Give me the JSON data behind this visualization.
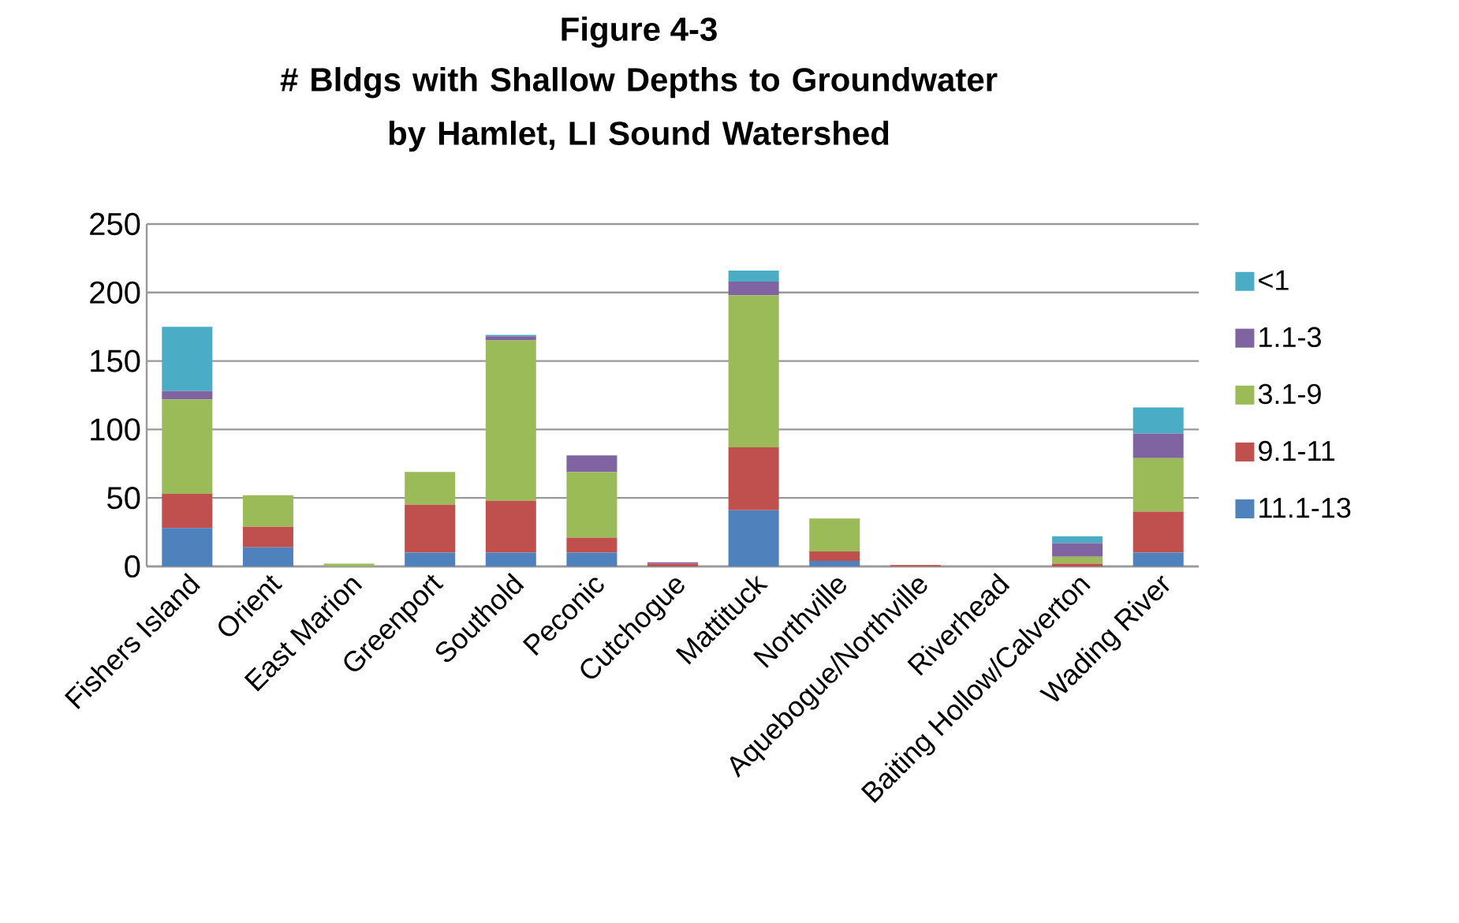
{
  "chart_data": {
    "type": "bar",
    "stacked": true,
    "title": "Figure 4-3",
    "subtitle": "# Bldgs with Shallow Depths to Groundwater by Hamlet, LI Sound Watershed",
    "categories": [
      "Fishers Island",
      "Orient",
      "East Marion",
      "Greenport",
      "Southold",
      "Peconic",
      "Cutchogue",
      "Mattituck",
      "Northville",
      "Aquebogue/Northville",
      "Riverhead",
      "Baiting Hollow/Calverton",
      "Wading River"
    ],
    "series": [
      {
        "name": "11.1-13",
        "color": "#4f81bd",
        "values": [
          28,
          14,
          0,
          10,
          10,
          10,
          0,
          41,
          4,
          0,
          0,
          0,
          10
        ]
      },
      {
        "name": "9.1-11",
        "color": "#c0504d",
        "values": [
          25,
          15,
          0,
          35,
          38,
          11,
          2,
          46,
          7,
          1,
          0,
          2,
          30
        ]
      },
      {
        "name": "3.1-9",
        "color": "#9bbb59",
        "values": [
          69,
          23,
          2,
          24,
          117,
          48,
          0,
          111,
          24,
          0,
          0,
          5,
          39
        ]
      },
      {
        "name": "1.1-3",
        "color": "#8064a2",
        "values": [
          6,
          0,
          0,
          0,
          3,
          12,
          1,
          10,
          0,
          0,
          0,
          10,
          18
        ]
      },
      {
        "name": "<1",
        "color": "#4bacc6",
        "values": [
          47,
          0,
          0,
          0,
          1,
          0,
          0,
          8,
          0,
          0,
          0,
          5,
          19
        ]
      }
    ],
    "ylim": [
      0,
      250
    ],
    "yticks": [
      0,
      50,
      100,
      150,
      200,
      250
    ],
    "grid": "y",
    "legend": "right"
  }
}
